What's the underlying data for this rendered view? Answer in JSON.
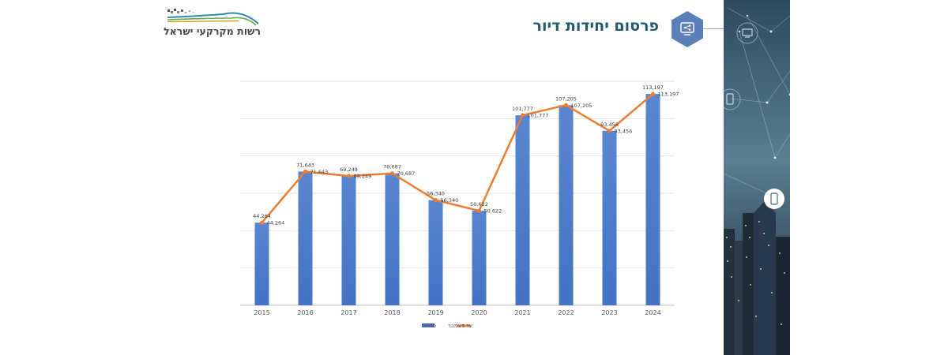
{
  "slide": {
    "title": "פרסום יחידות דיור",
    "logo_text": "רשות מקרקעי ישראל"
  },
  "colors": {
    "bar": "#4472c4",
    "line": "#ed7d31",
    "title": "#1f5a6e",
    "hexagon": "#5b7fb9"
  },
  "icons": {
    "title_icon": "share-icon",
    "panel_icons": [
      "computer-icon",
      "tablet-icon",
      "phone-icon"
    ]
  },
  "chart_data": {
    "type": "bar",
    "categories": [
      "2015",
      "2016",
      "2017",
      "2018",
      "2019",
      "2020",
      "2021",
      "2022",
      "2023",
      "2024"
    ],
    "series": [
      {
        "name": "סה\"כ",
        "type": "bar",
        "values": [
          44264,
          71643,
          69249,
          70687,
          56340,
          50622,
          101777,
          107205,
          93456,
          113197
        ]
      },
      {
        "name": "עד דצמבר",
        "type": "line",
        "values": [
          44264,
          71643,
          69249,
          70687,
          56340,
          50622,
          101777,
          107205,
          93456,
          113197
        ]
      }
    ],
    "bar_data_labels": [
      "44,264",
      "71,643",
      "69,249",
      "70,687",
      "56,340",
      "50,622",
      "101,777",
      "107,205",
      "93,456",
      "113,197"
    ],
    "line_data_labels": [
      "44,264",
      "71,643",
      "69,249",
      "70,687",
      "56,340",
      "50,622",
      "101,777",
      "107,205",
      "93,456",
      "113,197"
    ],
    "ylim": [
      0,
      120000
    ],
    "grid": true,
    "legend": "bottom"
  }
}
